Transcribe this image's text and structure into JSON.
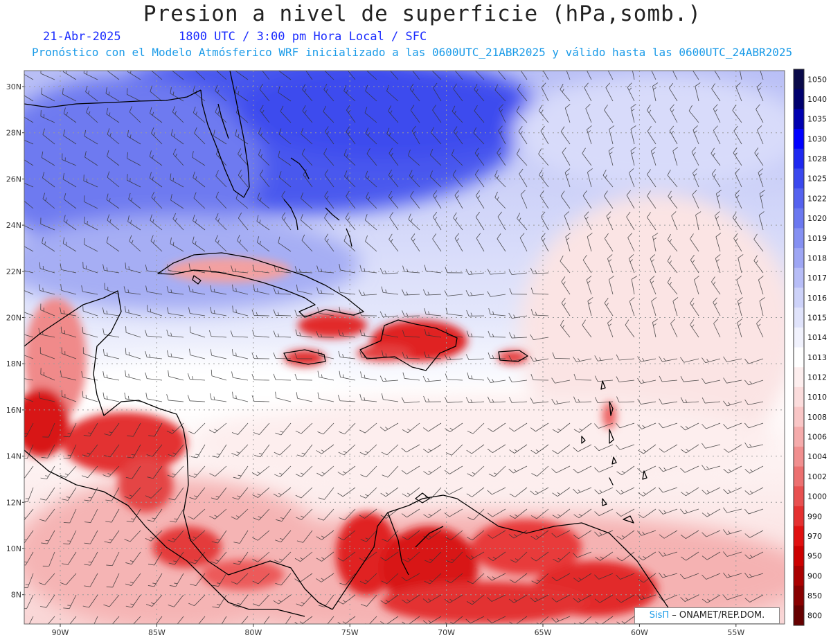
{
  "title": "Presion a nivel de superficie (hPa,somb.)",
  "date": "21-Abr-2025",
  "time_line": "1800 UTC / 3:00 pm Hora Local / SFC",
  "forecast_line": "Pronóstico con el Modelo Atmósferico WRF inicializado a las 0600UTC_21ABR2025 y válido hasta las  0600UTC_24ABR2025",
  "credit": {
    "brand": "SisΠ",
    "text": "– ONAMET/REP.DOM."
  },
  "lat_labels": [
    "30N",
    "28N",
    "26N",
    "24N",
    "22N",
    "20N",
    "18N",
    "16N",
    "14N",
    "12N",
    "10N",
    "8N"
  ],
  "lon_labels": [
    "90W",
    "85W",
    "80W",
    "75W",
    "70W",
    "65W",
    "60W",
    "55W"
  ],
  "colorbar": [
    {
      "label": "1050",
      "color": "#0a0a4a"
    },
    {
      "label": "1040",
      "color": "#00006e"
    },
    {
      "label": "1035",
      "color": "#0000b0"
    },
    {
      "label": "1030",
      "color": "#0000ff"
    },
    {
      "label": "1028",
      "color": "#1e28f0"
    },
    {
      "label": "1025",
      "color": "#3a48ee"
    },
    {
      "label": "1022",
      "color": "#5562ef"
    },
    {
      "label": "1020",
      "color": "#6b78f0"
    },
    {
      "label": "1019",
      "color": "#8590f2"
    },
    {
      "label": "1018",
      "color": "#9ea6f4"
    },
    {
      "label": "1017",
      "color": "#b7bdf7"
    },
    {
      "label": "1016",
      "color": "#cdd2f9"
    },
    {
      "label": "1015",
      "color": "#e0e3fb"
    },
    {
      "label": "1014",
      "color": "#f1f2fd"
    },
    {
      "label": "1013",
      "color": "#ffffff"
    },
    {
      "label": "1012",
      "color": "#fdeeee"
    },
    {
      "label": "1010",
      "color": "#fbdcdc"
    },
    {
      "label": "1008",
      "color": "#f9c6c6"
    },
    {
      "label": "1006",
      "color": "#f5abab"
    },
    {
      "label": "1004",
      "color": "#f18f8f"
    },
    {
      "label": "1002",
      "color": "#ec7070"
    },
    {
      "label": "1000",
      "color": "#e85050"
    },
    {
      "label": "990",
      "color": "#e43030"
    },
    {
      "label": "970",
      "color": "#e01010"
    },
    {
      "label": "950",
      "color": "#cc0000"
    },
    {
      "label": "900",
      "color": "#aa0000"
    },
    {
      "label": "850",
      "color": "#880000"
    },
    {
      "label": "800",
      "color": "#660000"
    }
  ]
}
